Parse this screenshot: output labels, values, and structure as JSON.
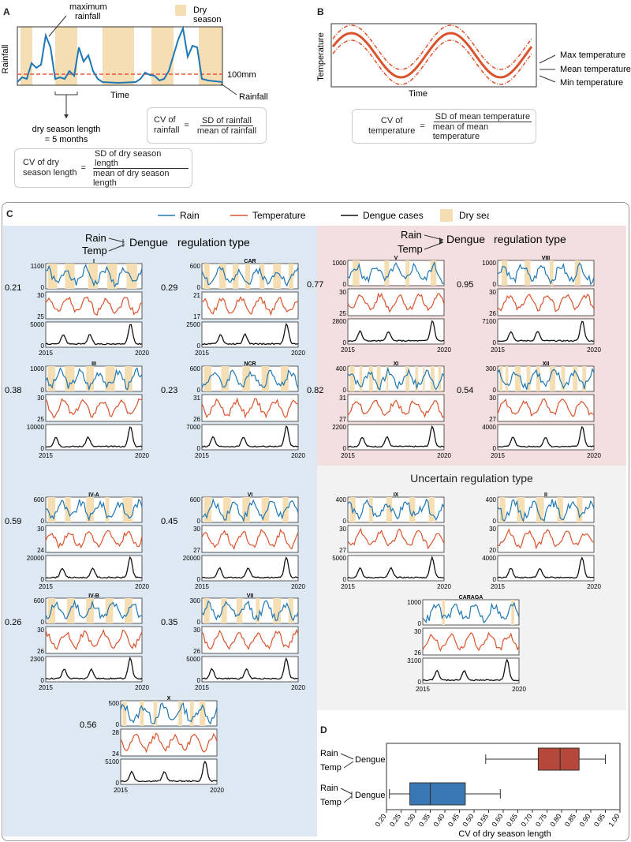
{
  "panel_labels": {
    "a": "A",
    "b": "B",
    "c": "C",
    "d": "D"
  },
  "panel_a": {
    "ylabel": "Rainfall",
    "xlabel": "Time",
    "annot_max": "maximum\nrainfall",
    "legend_dry": "Dry\nseason",
    "threshold_label": "100mm",
    "rainfall_label": "Rainfall",
    "dry_len_label": "dry season length\n= 5 months",
    "cv_rain": {
      "lhs": "CV of\nrainfall",
      "eq": "=",
      "num": "SD of rainfall",
      "den": "mean of rainfall"
    },
    "cv_dry": {
      "lhs": "CV of dry\nseason length",
      "eq": "=",
      "num": "SD of dry season length",
      "den": "mean of dry season length"
    }
  },
  "panel_b": {
    "ylabel": "Temperature",
    "xlabel": "Time",
    "max_label": "Max temperature",
    "mean_label": "Mean temperature",
    "min_label": "Min temperature",
    "cv_temp": {
      "lhs": "CV of\ntemperature",
      "eq": "=",
      "num": "SD of mean temperature",
      "den": "mean of mean temperature"
    }
  },
  "legend": {
    "rain": "Rain",
    "temperature": "Temperature",
    "dengue": "Dengue cases",
    "dry": "Dry season",
    "colors": {
      "rain": "#1f77b4",
      "temperature": "#d9532c",
      "dengue": "#111111",
      "dry": "#f5deb3"
    }
  },
  "group_titles": {
    "rain": "Rain",
    "temp": "Temp",
    "dengue": "Dengue",
    "regulation": "regulation type",
    "uncertain": "Uncertain regulation type"
  },
  "region_colors": {
    "blue": "#dde8f3",
    "pink": "#f3dfe0",
    "grey": "#f2f2f2"
  },
  "years": {
    "start": "2015",
    "end": "2020"
  },
  "regions": [
    {
      "id": "I",
      "cv": "0.21",
      "rain_max": "1100",
      "rain_min": "0",
      "t_max": "30",
      "t_min": "25",
      "d_max": "5000",
      "d_min": "0",
      "seed": 1,
      "dry": [
        [
          0.02,
          0.12
        ],
        [
          0.2,
          0.3
        ],
        [
          0.44,
          0.54
        ],
        [
          0.64,
          0.74
        ],
        [
          0.84,
          0.95
        ]
      ]
    },
    {
      "id": "CAR",
      "cv": "0.29",
      "rain_max": "600",
      "rain_min": "0",
      "t_max": "21",
      "t_min": "17",
      "d_max": "2500",
      "d_min": "0",
      "seed": 2,
      "dry": [
        [
          0.02,
          0.08
        ],
        [
          0.18,
          0.25
        ],
        [
          0.32,
          0.38
        ],
        [
          0.45,
          0.5
        ],
        [
          0.6,
          0.65
        ],
        [
          0.74,
          0.82
        ],
        [
          0.9,
          0.95
        ]
      ]
    },
    {
      "id": "III",
      "cv": "0.38",
      "rain_max": "1000",
      "rain_min": "0",
      "t_max": "30",
      "t_min": "25",
      "d_max": "10000",
      "d_min": "0",
      "seed": 3,
      "dry": [
        [
          0.02,
          0.1
        ],
        [
          0.2,
          0.3
        ],
        [
          0.42,
          0.5
        ],
        [
          0.62,
          0.72
        ],
        [
          0.82,
          0.9
        ]
      ]
    },
    {
      "id": "NCR",
      "cv": "0.23",
      "rain_max": "600",
      "rain_min": "0",
      "t_max": "31",
      "t_min": "26",
      "d_max": "7000",
      "d_min": "0",
      "seed": 4,
      "dry": [
        [
          0.02,
          0.1
        ],
        [
          0.2,
          0.28
        ],
        [
          0.42,
          0.5
        ],
        [
          0.62,
          0.7
        ],
        [
          0.82,
          0.9
        ]
      ]
    },
    {
      "id": "V",
      "cv": "0.77",
      "rain_max": "1000",
      "rain_min": "0",
      "t_max": "30",
      "t_min": "25",
      "d_max": "2800",
      "d_min": "0",
      "seed": 5,
      "dry": [
        [
          0.05,
          0.12
        ],
        [
          0.38,
          0.43
        ],
        [
          0.6,
          0.64
        ],
        [
          0.86,
          0.92
        ]
      ]
    },
    {
      "id": "VIII",
      "cv": "0.95",
      "rain_max": "1000",
      "rain_min": "0",
      "t_max": "30",
      "t_min": "26",
      "d_max": "7100",
      "d_min": "0",
      "seed": 6,
      "dry": [
        [
          0.04,
          0.1
        ],
        [
          0.28,
          0.34
        ],
        [
          0.54,
          0.58
        ],
        [
          0.8,
          0.86
        ]
      ]
    },
    {
      "id": "XI",
      "cv": "0.82",
      "rain_max": "400",
      "rain_min": "0",
      "t_max": "31",
      "t_min": "27",
      "d_max": "2200",
      "d_min": "0",
      "seed": 7,
      "dry": [
        [
          0.02,
          0.07
        ],
        [
          0.12,
          0.15
        ],
        [
          0.22,
          0.26
        ],
        [
          0.3,
          0.34
        ],
        [
          0.4,
          0.42
        ],
        [
          0.6,
          0.64
        ],
        [
          0.7,
          0.73
        ],
        [
          0.78,
          0.8
        ],
        [
          0.86,
          0.9
        ],
        [
          0.94,
          0.97
        ]
      ]
    },
    {
      "id": "XII",
      "cv": "0.54",
      "rain_max": "300",
      "rain_min": "0",
      "t_max": "30",
      "t_min": "27",
      "d_max": "4000",
      "d_min": "0",
      "seed": 8,
      "dry": [
        [
          0.02,
          0.05
        ],
        [
          0.08,
          0.11
        ],
        [
          0.18,
          0.24
        ],
        [
          0.3,
          0.34
        ],
        [
          0.4,
          0.44
        ],
        [
          0.54,
          0.6
        ],
        [
          0.66,
          0.7
        ],
        [
          0.78,
          0.83
        ],
        [
          0.88,
          0.92
        ]
      ]
    },
    {
      "id": "IV-A",
      "cv": "0.59",
      "rain_max": "600",
      "rain_min": "0",
      "t_max": "30",
      "t_min": "24",
      "d_max": "20000",
      "d_min": "0",
      "seed": 9,
      "dry": [
        [
          0.02,
          0.1
        ],
        [
          0.2,
          0.26
        ],
        [
          0.42,
          0.5
        ],
        [
          0.62,
          0.66
        ],
        [
          0.8,
          0.9
        ]
      ]
    },
    {
      "id": "VI",
      "cv": "0.45",
      "rain_max": "600",
      "rain_min": "0",
      "t_max": "30",
      "t_min": "27",
      "d_max": "20000",
      "d_min": "0",
      "seed": 10,
      "dry": [
        [
          0.02,
          0.1
        ],
        [
          0.22,
          0.3
        ],
        [
          0.42,
          0.5
        ],
        [
          0.62,
          0.7
        ],
        [
          0.84,
          0.9
        ]
      ]
    },
    {
      "id": "IV-B",
      "cv": "0.26",
      "rain_max": "600",
      "rain_min": "0",
      "t_max": "30",
      "t_min": "26",
      "d_max": "2300",
      "d_min": "0",
      "seed": 11,
      "dry": [
        [
          0.02,
          0.1
        ],
        [
          0.22,
          0.3
        ],
        [
          0.42,
          0.5
        ],
        [
          0.62,
          0.7
        ],
        [
          0.82,
          0.9
        ]
      ]
    },
    {
      "id": "VII",
      "cv": "0.35",
      "rain_max": "300",
      "rain_min": "0",
      "t_max": "30",
      "t_min": "26",
      "d_max": "5000",
      "d_min": "0",
      "seed": 12,
      "dry": [
        [
          0.02,
          0.08
        ],
        [
          0.2,
          0.26
        ],
        [
          0.36,
          0.42
        ],
        [
          0.56,
          0.6
        ],
        [
          0.74,
          0.82
        ],
        [
          0.9,
          0.95
        ]
      ]
    },
    {
      "id": "X",
      "cv": "0.56",
      "rain_max": "500",
      "rain_min": "0",
      "t_max": "28",
      "t_min": "24",
      "d_max": "5100",
      "d_min": "0",
      "seed": 13,
      "dry": [
        [
          0.02,
          0.06
        ],
        [
          0.2,
          0.24
        ],
        [
          0.34,
          0.38
        ],
        [
          0.6,
          0.64
        ],
        [
          0.72,
          0.76
        ],
        [
          0.82,
          0.88
        ]
      ]
    },
    {
      "id": "IX",
      "cv": "",
      "rain_max": "400",
      "rain_min": "0",
      "t_max": "30",
      "t_min": "27",
      "d_max": "5000",
      "d_min": "0",
      "seed": 14,
      "dry": [
        [
          0.02,
          0.08
        ],
        [
          0.22,
          0.26
        ],
        [
          0.4,
          0.46
        ],
        [
          0.64,
          0.7
        ],
        [
          0.84,
          0.9
        ]
      ]
    },
    {
      "id": "II",
      "cv": "",
      "rain_max": "400",
      "rain_min": "0",
      "t_max": "30",
      "t_min": "20",
      "d_max": "4000",
      "d_min": "0",
      "seed": 15,
      "dry": [
        [
          0.02,
          0.08
        ],
        [
          0.2,
          0.28
        ],
        [
          0.4,
          0.48
        ],
        [
          0.62,
          0.68
        ],
        [
          0.82,
          0.88
        ]
      ]
    },
    {
      "id": "CARAGA",
      "cv": "",
      "rain_max": "1000",
      "rain_min": "0",
      "t_max": "30",
      "t_min": "26",
      "d_max": "3100",
      "d_min": "0",
      "seed": 16,
      "dry": [
        [
          0.2,
          0.23
        ],
        [
          0.92,
          0.95
        ]
      ]
    }
  ],
  "chart_data": {
    "type": "boxplot",
    "xlabel": "CV of dry season length",
    "xlim": [
      0.2,
      1.0
    ],
    "ticks": [
      "0.20",
      "0.25",
      "0.30",
      "0.35",
      "0.40",
      "0.45",
      "0.50",
      "0.55",
      "0.60",
      "0.65",
      "0.70",
      "0.75",
      "0.80",
      "0.85",
      "0.90",
      "0.95",
      "1.00"
    ],
    "tick_values": [
      0.2,
      0.25,
      0.3,
      0.35,
      0.4,
      0.45,
      0.5,
      0.55,
      0.6,
      0.65,
      0.7,
      0.75,
      0.8,
      0.85,
      0.9,
      0.95,
      1.0
    ],
    "series": [
      {
        "color": "#b5483a",
        "min": 0.54,
        "q1": 0.72,
        "median": 0.795,
        "q3": 0.86,
        "max": 0.95
      },
      {
        "color": "#3a78b5",
        "min": 0.21,
        "q1": 0.28,
        "median": 0.35,
        "q3": 0.47,
        "max": 0.59
      }
    ]
  }
}
